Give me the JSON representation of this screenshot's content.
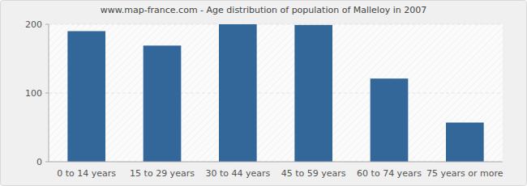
{
  "chart_data": {
    "type": "bar",
    "title": "www.map-france.com - Age distribution of population of Malleloy in 2007",
    "categories": [
      "0 to 14 years",
      "15 to 29 years",
      "30 to 44 years",
      "45 to 59 years",
      "60 to 74 years",
      "75 years or more"
    ],
    "values": [
      190,
      169,
      200,
      199,
      121,
      57
    ],
    "color": "#336699",
    "ylim": [
      0,
      200
    ],
    "yticks": [
      0,
      100,
      200
    ],
    "grid": true
  }
}
